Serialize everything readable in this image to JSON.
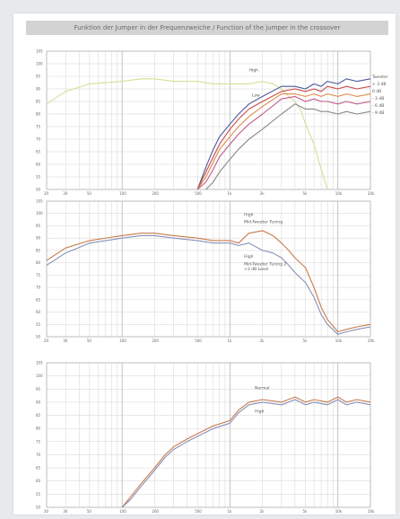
{
  "page": {
    "banner_title": "Funktion der Jumper in der Frequenzweiche / Function of the jumper in the crossover"
  },
  "chart_data": [
    {
      "type": "line",
      "title": "",
      "xlabel": "",
      "ylabel": "",
      "xscale": "log",
      "xlim": [
        20,
        20000
      ],
      "ylim": [
        50,
        105
      ],
      "grid": true,
      "yticks": [
        "105",
        "100",
        "95",
        "90",
        "85",
        "80",
        "75",
        "70",
        "65",
        "60",
        "55",
        "50"
      ],
      "xticks": [
        "20",
        "30",
        "50",
        "100",
        "200",
        "500",
        "1k",
        "2k",
        "5k",
        "10k",
        "20k"
      ],
      "annotations": [
        {
          "text": "High",
          "x": 1500,
          "y": 97
        },
        {
          "text": "Low",
          "x": 1600,
          "y": 87
        }
      ],
      "legend_title": "Tweeter",
      "legend_items": [
        "+ 3 dB",
        "0 dB",
        "- 3 dB",
        "- 6 dB",
        "- 9 dB"
      ],
      "colors": [
        "#d9dd95",
        "#4a5a9c",
        "#c94a4a",
        "#e08a4a",
        "#c05a8a",
        "#888888"
      ],
      "series": [
        {
          "x": [
            20,
            30,
            50,
            100,
            150,
            200,
            300,
            500,
            700,
            1000,
            1500,
            2000,
            2500,
            3000,
            3500,
            4000,
            4500,
            5000,
            6000,
            7000,
            8000
          ],
          "values": [
            84,
            89,
            92,
            93,
            94,
            94,
            93,
            93,
            92,
            92,
            92,
            93,
            92,
            90,
            87,
            85,
            82,
            76,
            68,
            58,
            50
          ]
        },
        {
          "x": [
            500,
            600,
            700,
            800,
            1000,
            1200,
            1500,
            2000,
            3000,
            4000,
            5000,
            6000,
            7000,
            8000,
            10000,
            12000,
            15000,
            20000
          ],
          "values": [
            50,
            59,
            66,
            71,
            76,
            80,
            84,
            87,
            91,
            91,
            90,
            92,
            91,
            93,
            92,
            94,
            93,
            94
          ]
        },
        {
          "x": [
            500,
            600,
            700,
            800,
            1000,
            1200,
            1500,
            2000,
            3000,
            4000,
            5000,
            6000,
            7000,
            8000,
            10000,
            12000,
            15000,
            20000
          ],
          "values": [
            50,
            57,
            63,
            68,
            74,
            78,
            82,
            85,
            89,
            90,
            89,
            90,
            89,
            91,
            90,
            91,
            90,
            91
          ]
        },
        {
          "x": [
            500,
            600,
            700,
            800,
            1000,
            1200,
            1500,
            2000,
            3000,
            4000,
            5000,
            6000,
            7000,
            8000,
            10000,
            12000,
            15000,
            20000
          ],
          "values": [
            50,
            55,
            61,
            66,
            71,
            75,
            79,
            83,
            88,
            88,
            87,
            88,
            87,
            88,
            87,
            88,
            87,
            88
          ]
        },
        {
          "x": [
            500,
            600,
            700,
            800,
            1000,
            1200,
            1500,
            2000,
            3000,
            4000,
            5000,
            6000,
            7000,
            8000,
            10000,
            12000,
            15000,
            20000
          ],
          "values": [
            50,
            53,
            58,
            63,
            68,
            72,
            76,
            80,
            86,
            87,
            85,
            86,
            85,
            85,
            84,
            85,
            84,
            85
          ]
        },
        {
          "x": [
            600,
            700,
            800,
            1000,
            1200,
            1500,
            2000,
            3000,
            4000,
            5000,
            6000,
            7000,
            8000,
            10000,
            12000,
            15000,
            20000
          ],
          "values": [
            50,
            53,
            57,
            62,
            66,
            70,
            74,
            80,
            84,
            82,
            82,
            81,
            81,
            80,
            81,
            80,
            81
          ]
        }
      ]
    },
    {
      "type": "line",
      "title": "",
      "xlabel": "",
      "ylabel": "",
      "xscale": "log",
      "xlim": [
        20,
        20000
      ],
      "ylim": [
        50,
        105
      ],
      "grid": true,
      "yticks": [
        "105",
        "100",
        "95",
        "90",
        "85",
        "80",
        "75",
        "70",
        "65",
        "60",
        "55",
        "50"
      ],
      "xticks": [
        "20",
        "30",
        "50",
        "100",
        "200",
        "500",
        "1k",
        "2k",
        "5k",
        "10k",
        "20k"
      ],
      "annotations": [
        {
          "text": "High",
          "x": 1350,
          "y": 99
        },
        {
          "text": "Mid-Tweeter Tuning",
          "x": 1350,
          "y": 96
        },
        {
          "text": "High",
          "x": 1350,
          "y": 82
        },
        {
          "text": "Mid-Tweeter Tuning 2",
          "x": 1350,
          "y": 79
        },
        {
          "text": "+3 dB Level",
          "x": 1350,
          "y": 77
        }
      ],
      "colors": [
        "#c97a4a",
        "#8890b8"
      ],
      "series": [
        {
          "x": [
            20,
            30,
            50,
            100,
            150,
            200,
            300,
            500,
            700,
            1000,
            1200,
            1500,
            2000,
            2500,
            3000,
            3500,
            4000,
            5000,
            6000,
            7000,
            8000,
            10000,
            12000,
            15000,
            20000
          ],
          "values": [
            81,
            86,
            89,
            91,
            92,
            92,
            91,
            90,
            89,
            89,
            88,
            92,
            93,
            91,
            88,
            85,
            82,
            78,
            70,
            62,
            57,
            52,
            53,
            54,
            55
          ]
        },
        {
          "x": [
            20,
            30,
            50,
            100,
            150,
            200,
            300,
            500,
            700,
            1000,
            1200,
            1500,
            2000,
            2500,
            3000,
            3500,
            4000,
            5000,
            6000,
            7000,
            8000,
            10000,
            12000,
            15000,
            20000
          ],
          "values": [
            79,
            84,
            88,
            90,
            91,
            91,
            90,
            89,
            88,
            88,
            87,
            88,
            85,
            84,
            82,
            79,
            76,
            72,
            66,
            59,
            55,
            51,
            52,
            53,
            54
          ]
        }
      ]
    },
    {
      "type": "line",
      "title": "",
      "xlabel": "",
      "ylabel": "",
      "xscale": "log",
      "xlim": [
        20,
        20000
      ],
      "ylim": [
        50,
        105
      ],
      "grid": true,
      "yticks": [
        "105",
        "100",
        "95",
        "90",
        "85",
        "80",
        "75",
        "70",
        "65",
        "60",
        "55",
        "50"
      ],
      "xticks": [
        "20",
        "30",
        "50",
        "100",
        "200",
        "500",
        "1k",
        "2k",
        "5k",
        "10k",
        "20k"
      ],
      "annotations": [
        {
          "text": "Normal",
          "x": 1700,
          "y": 95
        },
        {
          "text": "High",
          "x": 1700,
          "y": 86
        }
      ],
      "colors": [
        "#c97a4a",
        "#8890b8"
      ],
      "series": [
        {
          "x": [
            100,
            120,
            150,
            200,
            250,
            300,
            400,
            500,
            700,
            1000,
            1200,
            1500,
            2000,
            3000,
            4000,
            5000,
            6000,
            8000,
            10000,
            12000,
            15000,
            20000
          ],
          "values": [
            50,
            54,
            59,
            65,
            70,
            73,
            76,
            78,
            81,
            83,
            87,
            90,
            91,
            90,
            92,
            90,
            91,
            90,
            92,
            90,
            91,
            90
          ]
        },
        {
          "x": [
            100,
            120,
            150,
            200,
            250,
            300,
            400,
            500,
            700,
            1000,
            1200,
            1500,
            2000,
            3000,
            4000,
            5000,
            6000,
            8000,
            10000,
            12000,
            15000,
            20000
          ],
          "values": [
            50,
            53,
            58,
            64,
            69,
            72,
            75,
            77,
            80,
            82,
            86,
            89,
            90,
            89,
            91,
            89,
            90,
            89,
            91,
            89,
            90,
            89
          ]
        }
      ]
    }
  ]
}
